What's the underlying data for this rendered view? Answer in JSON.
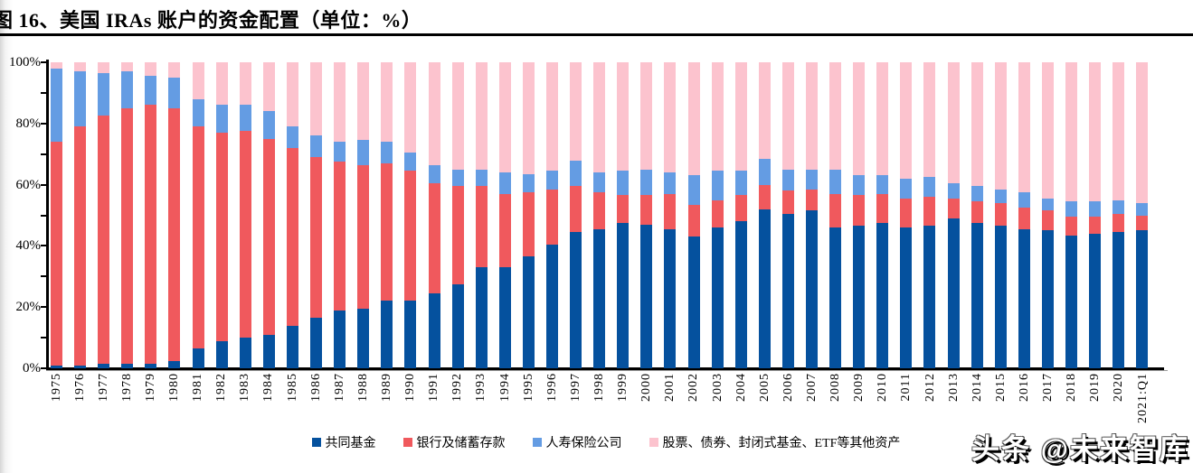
{
  "title": "图 16、美国 IRAs 账户的资金配置（单位：%）",
  "watermark": {
    "text": "头条 @未来智库"
  },
  "colors": {
    "mutual_funds": "#05519E",
    "bank_savings_deposits": "#F0595D",
    "life_insurance": "#649CE3",
    "other_assets": "#FCC3CE",
    "axis": "#000000"
  },
  "chart_data": {
    "type": "bar",
    "stacked": true,
    "unit": "%",
    "title": "美国 IRAs 账户的资金配置",
    "xlabel": "",
    "ylabel": "",
    "ylim": [
      0,
      100
    ],
    "grid": false,
    "legend_position": "bottom",
    "y_axis": {
      "labeled_ticks": [
        {
          "value": 0,
          "label": "0%"
        },
        {
          "value": 20,
          "label": "20%"
        },
        {
          "value": 40,
          "label": "40%"
        },
        {
          "value": 60,
          "label": "60%"
        },
        {
          "value": 80,
          "label": "80%"
        },
        {
          "value": 100,
          "label": "100%"
        }
      ],
      "minor_tick_step": 10
    },
    "categories": [
      "1975",
      "1976",
      "1977",
      "1978",
      "1979",
      "1980",
      "1981",
      "1982",
      "1983",
      "1984",
      "1985",
      "1986",
      "1987",
      "1988",
      "1989",
      "1990",
      "1991",
      "1992",
      "1993",
      "1994",
      "1995",
      "1996",
      "1997",
      "1998",
      "1999",
      "2000",
      "2001",
      "2002",
      "2003",
      "2004",
      "2005",
      "2006",
      "2007",
      "2008",
      "2009",
      "2010",
      "2011",
      "2012",
      "2013",
      "2014",
      "2015",
      "2016",
      "2017",
      "2018",
      "2019",
      "2020",
      "2021:Q1"
    ],
    "series": [
      {
        "name": "共同基金",
        "key": "mutual-funds",
        "color": "#05519E",
        "values": [
          1,
          1,
          1.5,
          1.5,
          1.5,
          2.5,
          6.5,
          9,
          10,
          11,
          14,
          16.5,
          19,
          19.5,
          22,
          22,
          24.5,
          27.5,
          33,
          33,
          36.5,
          40.5,
          44.5,
          45.5,
          47.5,
          47,
          45.5,
          43,
          46,
          48,
          52,
          50.5,
          51.5,
          46,
          46.5,
          47.5,
          46,
          46.5,
          49,
          47.5,
          46.5,
          45.5,
          45,
          43.5,
          44,
          44.5,
          45
        ]
      },
      {
        "name": "银行及储蓄存款",
        "key": "bank-savings-deposits",
        "color": "#F0595D",
        "values": [
          73,
          78,
          81,
          83.5,
          84.5,
          82.5,
          72.5,
          68,
          67.5,
          64,
          58,
          52.5,
          48.5,
          47,
          45,
          42.5,
          36,
          32,
          26.5,
          24,
          21,
          18,
          15,
          12,
          9,
          9.5,
          11.5,
          10.5,
          9,
          8.5,
          8,
          7.5,
          7,
          11,
          10,
          9.5,
          9.5,
          9.5,
          6.5,
          7,
          7.5,
          7,
          6.5,
          6,
          5.5,
          6,
          5
        ]
      },
      {
        "name": "人寿保险公司",
        "key": "life-insurance",
        "color": "#649CE3",
        "values": [
          24,
          18,
          14,
          12,
          9.5,
          10,
          9,
          9,
          8.5,
          9,
          7,
          7,
          6.5,
          8,
          7,
          6,
          6,
          5.5,
          5.5,
          7,
          6,
          6,
          8.5,
          6.5,
          8,
          8.5,
          7,
          9.5,
          9.5,
          8,
          8.5,
          7,
          6.5,
          8,
          6.5,
          6,
          6.5,
          6.5,
          5,
          5,
          4.5,
          5,
          4,
          5,
          5,
          4.5,
          4
        ]
      },
      {
        "name": "股票、债券、封闭式基金、ETF等其他资产",
        "key": "other-assets",
        "color": "#FCC3CE",
        "values": [
          2,
          3,
          3.5,
          3,
          4.5,
          5,
          12,
          14,
          14,
          16,
          21,
          24,
          26,
          25.5,
          26,
          29.5,
          33.5,
          35,
          35,
          36,
          36.5,
          35.5,
          32,
          36,
          35.5,
          35,
          36,
          37,
          35.5,
          35.5,
          31.5,
          35,
          35,
          35,
          37,
          37,
          38,
          37.5,
          39.5,
          40.5,
          41.5,
          42.5,
          44.5,
          45.5,
          45.5,
          45,
          46
        ]
      }
    ]
  }
}
